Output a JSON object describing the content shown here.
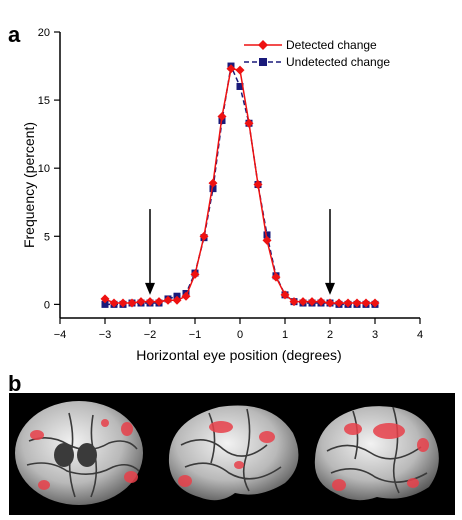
{
  "panel_labels": [
    "a",
    "b"
  ],
  "chart_data": {
    "type": "line",
    "title": "",
    "xlabel": "Horizontal eye position (degrees)",
    "ylabel": "Frequency (percent)",
    "xlim": [
      -4,
      4
    ],
    "ylim": [
      -1,
      20
    ],
    "x_ticks": [
      -4,
      -3,
      -2,
      -1,
      0,
      1,
      2,
      3,
      4
    ],
    "x_tick_labels": [
      "−4",
      "−3",
      "−2",
      "−1",
      "0",
      "1",
      "2",
      "3",
      "4"
    ],
    "y_ticks": [
      0,
      5,
      10,
      15,
      20
    ],
    "y_tick_labels": [
      "0",
      "5",
      "10",
      "15",
      "20"
    ],
    "grid": false,
    "legend_position": "top-right",
    "x": [
      -3.0,
      -2.8,
      -2.6,
      -2.4,
      -2.2,
      -2.0,
      -1.8,
      -1.6,
      -1.4,
      -1.2,
      -1.0,
      -0.8,
      -0.6,
      -0.4,
      -0.2,
      0.0,
      0.2,
      0.4,
      0.6,
      0.8,
      1.0,
      1.2,
      1.4,
      1.6,
      1.8,
      2.0,
      2.2,
      2.4,
      2.6,
      2.8,
      3.0
    ],
    "series": [
      {
        "name": "Detected change",
        "color": "#ee1111",
        "marker": "diamond",
        "values": [
          0.4,
          0.1,
          0.1,
          0.1,
          0.2,
          0.2,
          0.2,
          0.3,
          0.3,
          0.6,
          2.2,
          5.0,
          8.9,
          13.8,
          17.3,
          17.2,
          13.3,
          8.8,
          4.7,
          2.0,
          0.7,
          0.2,
          0.2,
          0.2,
          0.2,
          0.1,
          0.1,
          0.1,
          0.1,
          0.1,
          0.1
        ]
      },
      {
        "name": "Undetected change",
        "color": "#1a1a7a",
        "marker": "square",
        "dashed": true,
        "values": [
          0.0,
          0.0,
          0.0,
          0.1,
          0.1,
          0.1,
          0.1,
          0.4,
          0.6,
          0.8,
          2.3,
          4.9,
          8.5,
          13.5,
          17.5,
          16.0,
          13.3,
          8.8,
          5.1,
          2.1,
          0.7,
          0.2,
          0.1,
          0.1,
          0.1,
          0.1,
          0.0,
          0.0,
          0.0,
          0.0,
          0.0
        ]
      }
    ],
    "annotations": [
      {
        "type": "arrow",
        "x": -2,
        "from_y": 7,
        "to_y": 0.7
      },
      {
        "type": "arrow",
        "x": 2,
        "from_y": 7,
        "to_y": 0.7
      }
    ]
  }
}
